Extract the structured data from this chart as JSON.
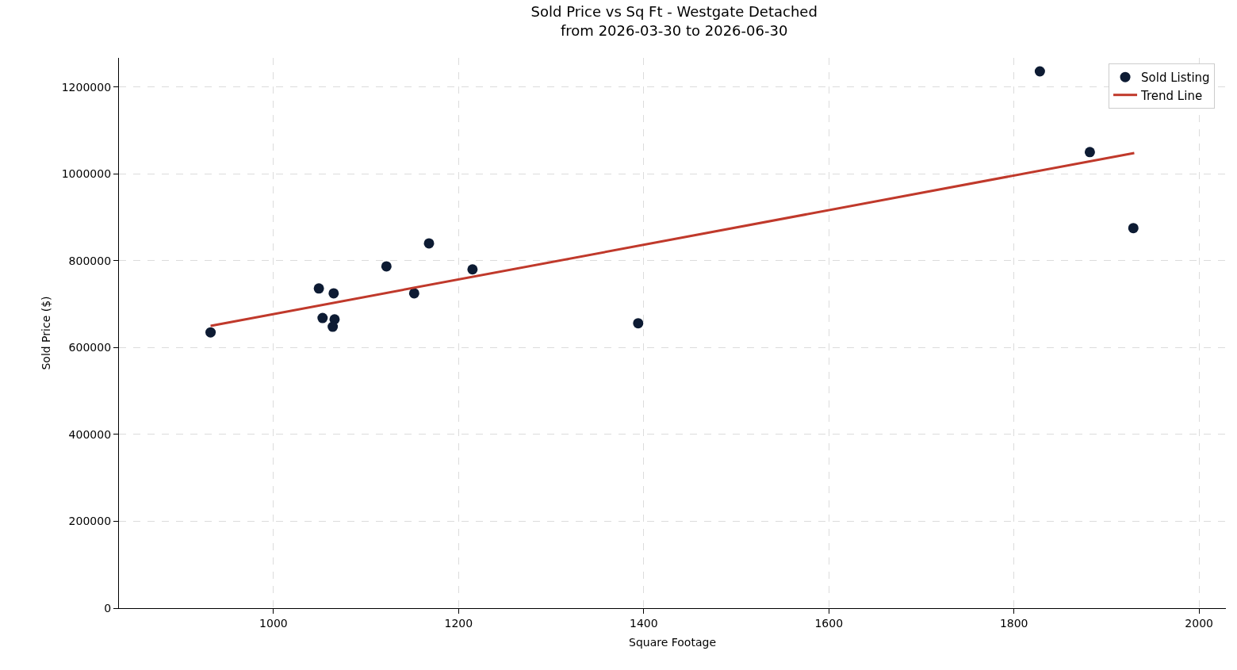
{
  "chart_data": {
    "type": "scatter",
    "title": "Sold Price vs Sq Ft - Westgate Detached\nfrom 2026-03-30 to 2026-06-30",
    "xlabel": "Square Footage",
    "ylabel": "Sold Price ($)",
    "series": [
      {
        "name": "Sold Listing",
        "type": "scatter",
        "marker": "circle",
        "color": "#0d1b33",
        "x": [
          932,
          1049,
          1053,
          1065,
          1066,
          1064,
          1122,
          1152,
          1168,
          1215,
          1394,
          1828,
          1882,
          1929
        ],
        "values": [
          635000,
          736000,
          668000,
          725000,
          665000,
          648000,
          787000,
          725000,
          840000,
          780000,
          656000,
          1236000,
          1050000,
          875000
        ]
      },
      {
        "name": "Trend Line",
        "type": "line",
        "line_style": "solid",
        "color": "#c0392b",
        "x": [
          932,
          1930
        ],
        "values": [
          650000,
          1048000
        ]
      }
    ],
    "xlim": [
      833,
      2029
    ],
    "xticks": [
      1000,
      1200,
      1400,
      1600,
      1800,
      2000
    ],
    "ylim": [
      0,
      1267000
    ],
    "yticks": [
      0,
      200000,
      400000,
      600000,
      800000,
      1000000,
      1200000
    ],
    "grid": true,
    "legend": "top right"
  }
}
